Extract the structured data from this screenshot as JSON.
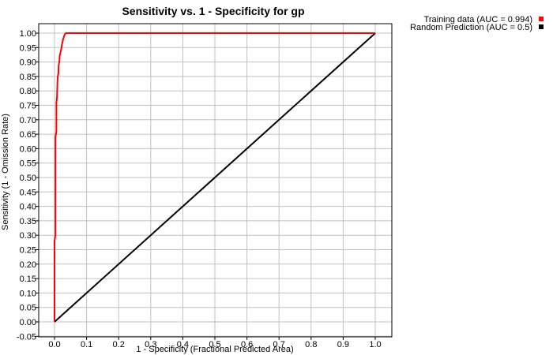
{
  "chart_data": {
    "type": "line",
    "title": "Sensitivity vs. 1 - Specificity for gp",
    "xlabel": "1 - Specificity  (Fractional Predicted Area)",
    "ylabel": "Sensitivity (1 - Omission Rate)",
    "xlim": [
      -0.05,
      1.05
    ],
    "ylim": [
      -0.05,
      1.05
    ],
    "x_ticks": [
      0.0,
      0.1,
      0.2,
      0.3,
      0.4,
      0.5,
      0.6,
      0.7,
      0.8,
      0.9,
      1.0
    ],
    "x_tick_labels": [
      "0.0",
      "0.1",
      "0.2",
      "0.3",
      "0.4",
      "0.5",
      "0.6",
      "0.7",
      "0.8",
      "0.9",
      "1.0"
    ],
    "y_ticks": [
      -0.05,
      0.0,
      0.05,
      0.1,
      0.15,
      0.2,
      0.25,
      0.3,
      0.35,
      0.4,
      0.45,
      0.5,
      0.55,
      0.6,
      0.65,
      0.7,
      0.75,
      0.8,
      0.85,
      0.9,
      0.95,
      1.0
    ],
    "y_tick_labels": [
      "-0.05",
      "0.00",
      "0.05",
      "0.10",
      "0.15",
      "0.20",
      "0.25",
      "0.30",
      "0.35",
      "0.40",
      "0.45",
      "0.50",
      "0.55",
      "0.60",
      "0.65",
      "0.70",
      "0.75",
      "0.80",
      "0.85",
      "0.90",
      "0.95",
      "1.00"
    ],
    "grid": true,
    "legend_position": "top-right, outside plot",
    "series": [
      {
        "name": "Training data (AUC = 0.994)",
        "color": "#ff0000",
        "x": [
          0.0,
          0.0,
          0.0,
          0.003,
          0.003,
          0.006,
          0.006,
          0.008,
          0.009,
          0.01,
          0.012,
          0.013,
          0.015,
          0.016,
          0.018,
          0.02,
          0.022,
          0.023,
          0.025,
          0.027,
          0.03,
          0.032,
          0.035,
          1.0
        ],
        "y": [
          0.0,
          0.15,
          0.28,
          0.3,
          0.64,
          0.66,
          0.76,
          0.78,
          0.83,
          0.85,
          0.86,
          0.89,
          0.9,
          0.92,
          0.93,
          0.94,
          0.95,
          0.96,
          0.97,
          0.98,
          0.99,
          0.995,
          1.0,
          1.0
        ]
      },
      {
        "name": "Random Prediction (AUC = 0.5)",
        "color": "#000000",
        "x": [
          0.0,
          1.0
        ],
        "y": [
          0.0,
          1.0
        ]
      }
    ]
  }
}
